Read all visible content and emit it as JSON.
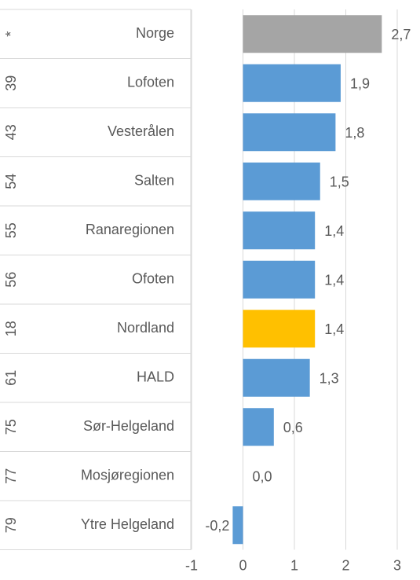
{
  "chart_data": {
    "type": "bar",
    "orientation": "horizontal",
    "ranks": [
      "*",
      "39",
      "43",
      "54",
      "55",
      "56",
      "18",
      "61",
      "75",
      "77",
      "79"
    ],
    "categories": [
      "Norge",
      "Lofoten",
      "Vesterålen",
      "Salten",
      "Ranaregionen",
      "Ofoten",
      "Nordland",
      "HALD",
      "Sør-Helgeland",
      "Mosjøregionen",
      "Ytre Helgeland"
    ],
    "values": [
      2.7,
      1.9,
      1.8,
      1.5,
      1.4,
      1.4,
      1.4,
      1.3,
      0.6,
      0.0,
      -0.2
    ],
    "value_labels": [
      "2,7",
      "1,9",
      "1,8",
      "1,5",
      "1,4",
      "1,4",
      "1,4",
      "1,3",
      "0,6",
      "0,0",
      "-0,2"
    ],
    "colors": [
      "#a5a5a5",
      "#5b9bd5",
      "#5b9bd5",
      "#5b9bd5",
      "#5b9bd5",
      "#5b9bd5",
      "#ffc000",
      "#5b9bd5",
      "#5b9bd5",
      "#5b9bd5",
      "#5b9bd5"
    ],
    "xlim": [
      -1,
      3
    ],
    "xticks": [
      -1,
      0,
      1,
      2,
      3
    ],
    "grid": true
  }
}
